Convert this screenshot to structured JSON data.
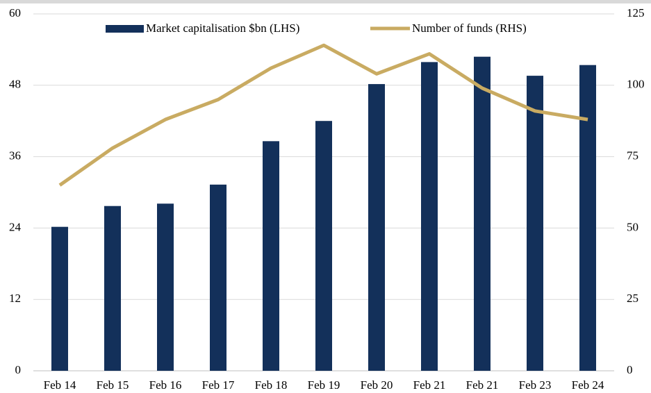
{
  "chart_data": {
    "type": "bar_line",
    "categories": [
      "Feb 14",
      "Feb 15",
      "Feb 16",
      "Feb 17",
      "Feb 18",
      "Feb 19",
      "Feb 20",
      "Feb 21",
      "Feb 21",
      "Feb 23",
      "Feb 24"
    ],
    "series": [
      {
        "name": "Market capitalisation $bn (LHS)",
        "color": "#13305a",
        "type": "bar",
        "values": [
          24.2,
          27.7,
          28.1,
          31.3,
          38.6,
          42.0,
          48.2,
          51.9,
          52.8,
          49.6,
          51.4
        ]
      },
      {
        "name": "Number of funds (RHS)",
        "color": "#c9ab62",
        "type": "line",
        "axis": "y2",
        "values": [
          65,
          78,
          88,
          95,
          106,
          114,
          104,
          111,
          99,
          91,
          88
        ]
      }
    ],
    "ylim": [
      0,
      60
    ],
    "yticks": [
      0,
      12,
      24,
      36,
      48,
      60
    ],
    "y2lim": [
      0,
      125
    ],
    "y2ticks": [
      0,
      25,
      50,
      75,
      100,
      125
    ],
    "grid": true,
    "legend": "top"
  }
}
